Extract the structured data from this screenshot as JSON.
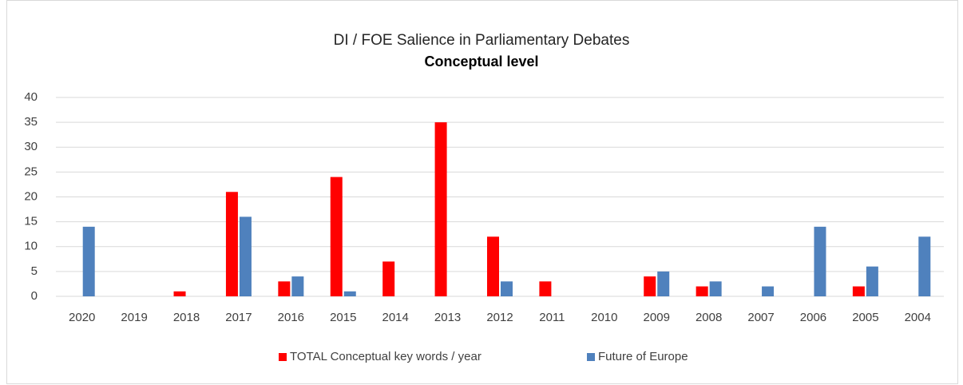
{
  "chart_data": {
    "type": "bar",
    "title": "DI / FOE Salience in Parliamentary Debates",
    "subtitle": "Conceptual level",
    "categories": [
      "2020",
      "2019",
      "2018",
      "2017",
      "2016",
      "2015",
      "2014",
      "2013",
      "2012",
      "2011",
      "2010",
      "2009",
      "2008",
      "2007",
      "2006",
      "2005",
      "2004"
    ],
    "series": [
      {
        "name": "TOTAL Conceptual key words / year",
        "color": "#ff0000",
        "values": [
          0,
          0,
          1,
          21,
          3,
          24,
          7,
          35,
          12,
          3,
          0,
          4,
          2,
          0,
          0,
          2,
          0
        ]
      },
      {
        "name": "Future of Europe",
        "color": "#4f81bd",
        "values": [
          14,
          0,
          0,
          16,
          4,
          1,
          0,
          0,
          3,
          0,
          0,
          5,
          3,
          2,
          14,
          6,
          12
        ]
      }
    ],
    "ylim": [
      0,
      40
    ],
    "yticks": [
      0,
      5,
      10,
      15,
      20,
      25,
      30,
      35,
      40
    ],
    "grid": true,
    "legend": "bottom"
  }
}
